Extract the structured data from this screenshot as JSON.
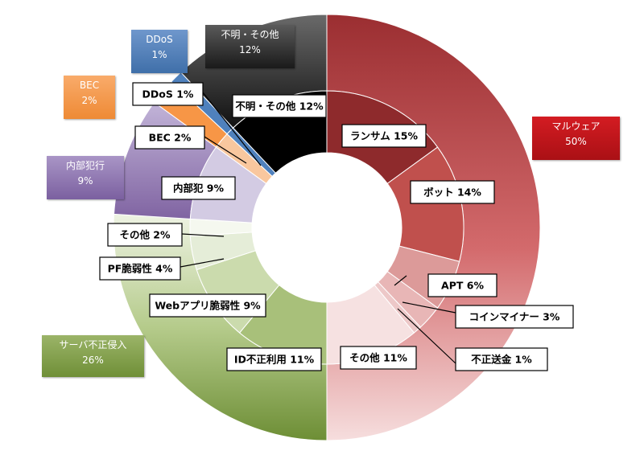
{
  "chart_data": {
    "type": "pie",
    "subtype": "nested-donut",
    "outer": [
      {
        "label": "マルウェア",
        "value": 50,
        "color": "#c0151b"
      },
      {
        "label": "サーバ不正侵入",
        "value": 26,
        "color": "#77963d"
      },
      {
        "label": "内部犯行",
        "value": 9,
        "color": "#8064a2"
      },
      {
        "label": "BEC",
        "value": 2,
        "color": "#f79646"
      },
      {
        "label": "DDoS",
        "value": 1,
        "color": "#4f81bd"
      },
      {
        "label": "不明・その他",
        "value": 12,
        "color": "#1c1c1c"
      }
    ],
    "outer_tiles": [
      {
        "name": "マルウェア",
        "pct": "50%"
      },
      {
        "name": "サーバ不正侵入",
        "pct": "26%"
      },
      {
        "name": "内部犯行",
        "pct": "9%"
      },
      {
        "name": "BEC",
        "pct": "2%"
      },
      {
        "name": "DDoS",
        "pct": "1%"
      },
      {
        "name": "不明・その他",
        "pct": "12%"
      }
    ],
    "inner": [
      {
        "label": "ランサム 15%",
        "value": 15,
        "color": "#8e2a2c"
      },
      {
        "label": "ボット 14%",
        "value": 14,
        "color": "#c0504d"
      },
      {
        "label": "APT 6%",
        "value": 6,
        "color": "#dc9a99"
      },
      {
        "label": "コインマイナー 3%",
        "value": 3,
        "color": "#e8b6b6"
      },
      {
        "label": "不正送金 1%",
        "value": 1,
        "color": "#edc8c8"
      },
      {
        "label": "その他 11%",
        "value": 11,
        "color": "#f6e1e1"
      },
      {
        "label": "ID不正利用 11%",
        "value": 11,
        "color": "#a8c07a"
      },
      {
        "label": "Webアプリ脆弱性 9%",
        "value": 9,
        "color": "#cbdbad"
      },
      {
        "label": "PF脆弱性 4%",
        "value": 4,
        "color": "#e5edd8"
      },
      {
        "label": "その他 2%",
        "value": 2,
        "color": "#f5f8ef"
      },
      {
        "label": "内部犯 9%",
        "value": 9,
        "color": "#d3cbe3"
      },
      {
        "label": "BEC 2%",
        "value": 2,
        "color": "#f9c79e"
      },
      {
        "label": "DDoS 1%",
        "value": 1,
        "color": "#4f81bd"
      },
      {
        "label": "不明・その他 12%",
        "value": 12,
        "color": "#000000"
      }
    ]
  }
}
